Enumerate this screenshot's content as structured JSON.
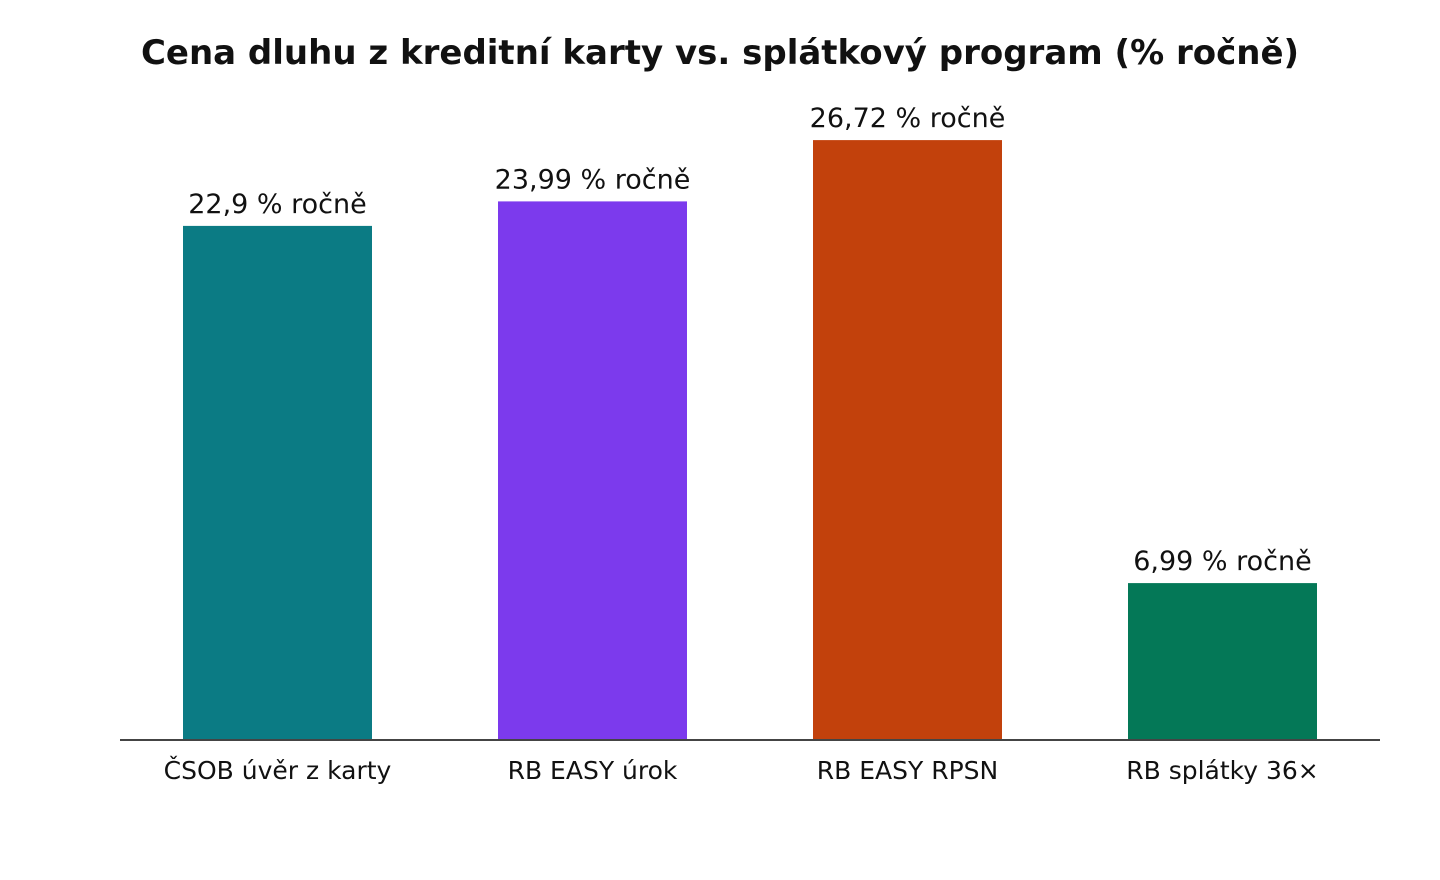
{
  "chart_data": {
    "type": "bar",
    "title": "Cena dluhu z kreditní karty vs. splátkový program (% ročně)",
    "xlabel": "",
    "ylabel": "",
    "ylim": [
      0,
      28.5
    ],
    "grid": false,
    "legend": "none",
    "categories": [
      "ČSOB úvěr z karty",
      "RB EASY úrok",
      "RB EASY RPSN",
      "RB splátky 36×"
    ],
    "values": [
      22.9,
      23.99,
      26.72,
      6.99
    ],
    "data_labels": [
      "22,9 % ročně",
      "23,99 % ročně",
      "26,72 % ročně",
      "6,99 % ročně"
    ],
    "colors": [
      "#0b7b84",
      "#7c3aed",
      "#c2410c",
      "#047857"
    ],
    "axis_color": "#444444"
  }
}
